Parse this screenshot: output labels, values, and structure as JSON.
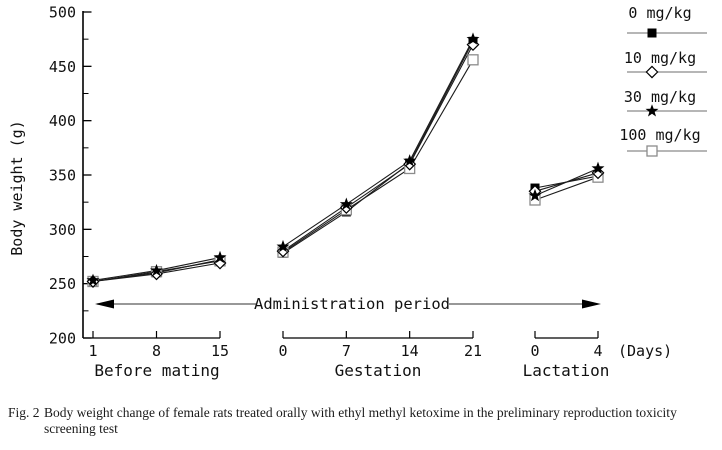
{
  "figure": {
    "caption_label": "Fig. 2",
    "caption_text": "Body weight change of female rats treated orally with ethyl methyl ketoxime in the preliminary reproduction toxicity screening test"
  },
  "chart_data": {
    "type": "line",
    "title": "",
    "ylabel": "Body weight (g)",
    "days_unit_label": "(Days)",
    "annotation": "Administration period",
    "ylim": [
      200,
      500
    ],
    "yticks": [
      200,
      250,
      300,
      350,
      400,
      450,
      500
    ],
    "ytick_minor_interval": 25,
    "grid": false,
    "legend_position": "top-right",
    "sections": [
      {
        "name": "Before mating",
        "key": "before_mating",
        "days": [
          1,
          8,
          15
        ]
      },
      {
        "name": "Gestation",
        "key": "gestation",
        "days": [
          0,
          7,
          14,
          21
        ]
      },
      {
        "name": "Lactation",
        "key": "lactation",
        "days": [
          0,
          4
        ]
      }
    ],
    "series": [
      {
        "name": "0 mg/kg",
        "marker": "filled-square",
        "values": {
          "before_mating": [
            252,
            260,
            272
          ],
          "gestation": [
            278,
            316,
            361,
            473
          ],
          "lactation": [
            338,
            349
          ]
        }
      },
      {
        "name": "10 mg/kg",
        "marker": "open-diamond",
        "values": {
          "before_mating": [
            252,
            259,
            269
          ],
          "gestation": [
            280,
            320,
            360,
            470
          ],
          "lactation": [
            335,
            352
          ]
        }
      },
      {
        "name": "30 mg/kg",
        "marker": "filled-star",
        "values": {
          "before_mating": [
            253,
            262,
            274
          ],
          "gestation": [
            284,
            323,
            363,
            475
          ],
          "lactation": [
            331,
            356
          ]
        }
      },
      {
        "name": "100 mg/kg",
        "marker": "open-square",
        "values": {
          "before_mating": [
            252,
            261,
            271
          ],
          "gestation": [
            279,
            318,
            356,
            456
          ],
          "lactation": [
            327,
            348
          ]
        }
      }
    ],
    "colors": {
      "line": "#1c1c1c",
      "open_marker_stroke": "#8c8c8c",
      "arrow_line": "#5a5a5a",
      "text": "#111111"
    }
  }
}
